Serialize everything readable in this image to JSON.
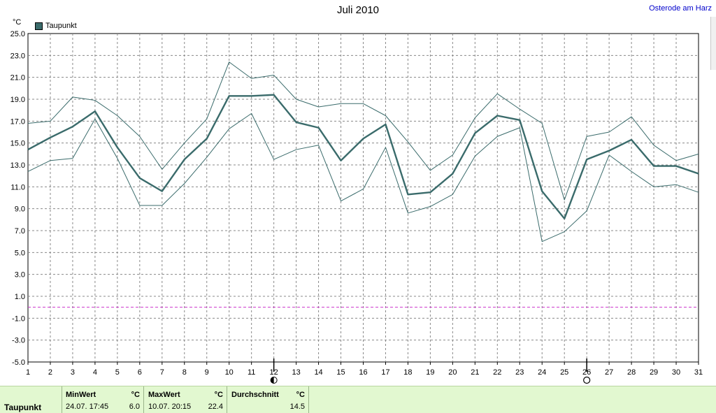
{
  "title": "Juli 2010",
  "location": "Osterode am Harz",
  "unit": "°C",
  "legend_label": "Taupunkt",
  "colors": {
    "series": "#3a6b6b",
    "zero_line": "#cc33cc",
    "grid": "#888888",
    "footer_bg": "#e2f8d0"
  },
  "moon_icons": [
    {
      "day": 12,
      "icon": "half-moon-icon"
    },
    {
      "day": 26,
      "icon": "full-moon-icon"
    }
  ],
  "chart_data": {
    "type": "line",
    "x": [
      1,
      2,
      3,
      4,
      5,
      6,
      7,
      8,
      9,
      10,
      11,
      12,
      13,
      14,
      15,
      16,
      17,
      18,
      19,
      20,
      21,
      22,
      23,
      24,
      25,
      26,
      27,
      28,
      29,
      30,
      31
    ],
    "xlim": [
      1,
      31
    ],
    "ylim": [
      -5,
      25
    ],
    "y_ticks": [
      "25.0",
      "23.0",
      "21.0",
      "19.0",
      "17.0",
      "15.0",
      "13.0",
      "11.0",
      "9.0",
      "7.0",
      "5.0",
      "3.0",
      "1.0",
      "-1.0",
      "-3.0",
      "-5.0"
    ],
    "grid": true,
    "reference_line": 0,
    "series": [
      {
        "name": "Taupunkt",
        "role": "mean",
        "values": [
          14.4,
          15.5,
          16.5,
          17.9,
          14.6,
          11.8,
          10.6,
          13.5,
          15.4,
          19.3,
          19.3,
          19.4,
          16.9,
          16.4,
          13.4,
          15.4,
          16.7,
          10.3,
          10.5,
          12.2,
          15.9,
          17.5,
          17.1,
          10.6,
          8.1,
          13.5,
          14.3,
          15.3,
          12.9,
          12.9,
          12.2
        ]
      },
      {
        "role": "max",
        "values": [
          16.8,
          17.0,
          19.2,
          18.9,
          17.5,
          15.6,
          12.6,
          15.0,
          17.2,
          22.4,
          20.9,
          21.2,
          19.0,
          18.3,
          18.6,
          18.6,
          17.5,
          15.1,
          12.5,
          13.9,
          17.3,
          19.5,
          18.1,
          16.8,
          9.8,
          15.6,
          16.0,
          17.4,
          14.8,
          13.4,
          14.0
        ]
      },
      {
        "role": "min",
        "values": [
          12.4,
          13.4,
          13.6,
          17.2,
          13.6,
          9.3,
          9.3,
          11.3,
          13.7,
          16.3,
          17.7,
          13.5,
          14.4,
          14.8,
          9.7,
          10.8,
          14.6,
          8.6,
          9.2,
          10.3,
          13.8,
          15.6,
          16.4,
          6.0,
          6.9,
          8.8,
          13.9,
          12.4,
          11.0,
          11.2,
          10.5
        ]
      }
    ]
  },
  "footer": {
    "row_label": "Taupunkt",
    "min_label": "MinWert",
    "min_unit": "°C",
    "min_time": "24.07.  17:45",
    "min_value": "6.0",
    "max_label": "MaxWert",
    "max_unit": "°C",
    "max_time": "10.07.  20:15",
    "max_value": "22.4",
    "avg_label": "Durchschnitt",
    "avg_unit": "°C",
    "avg_value": "14.5"
  }
}
